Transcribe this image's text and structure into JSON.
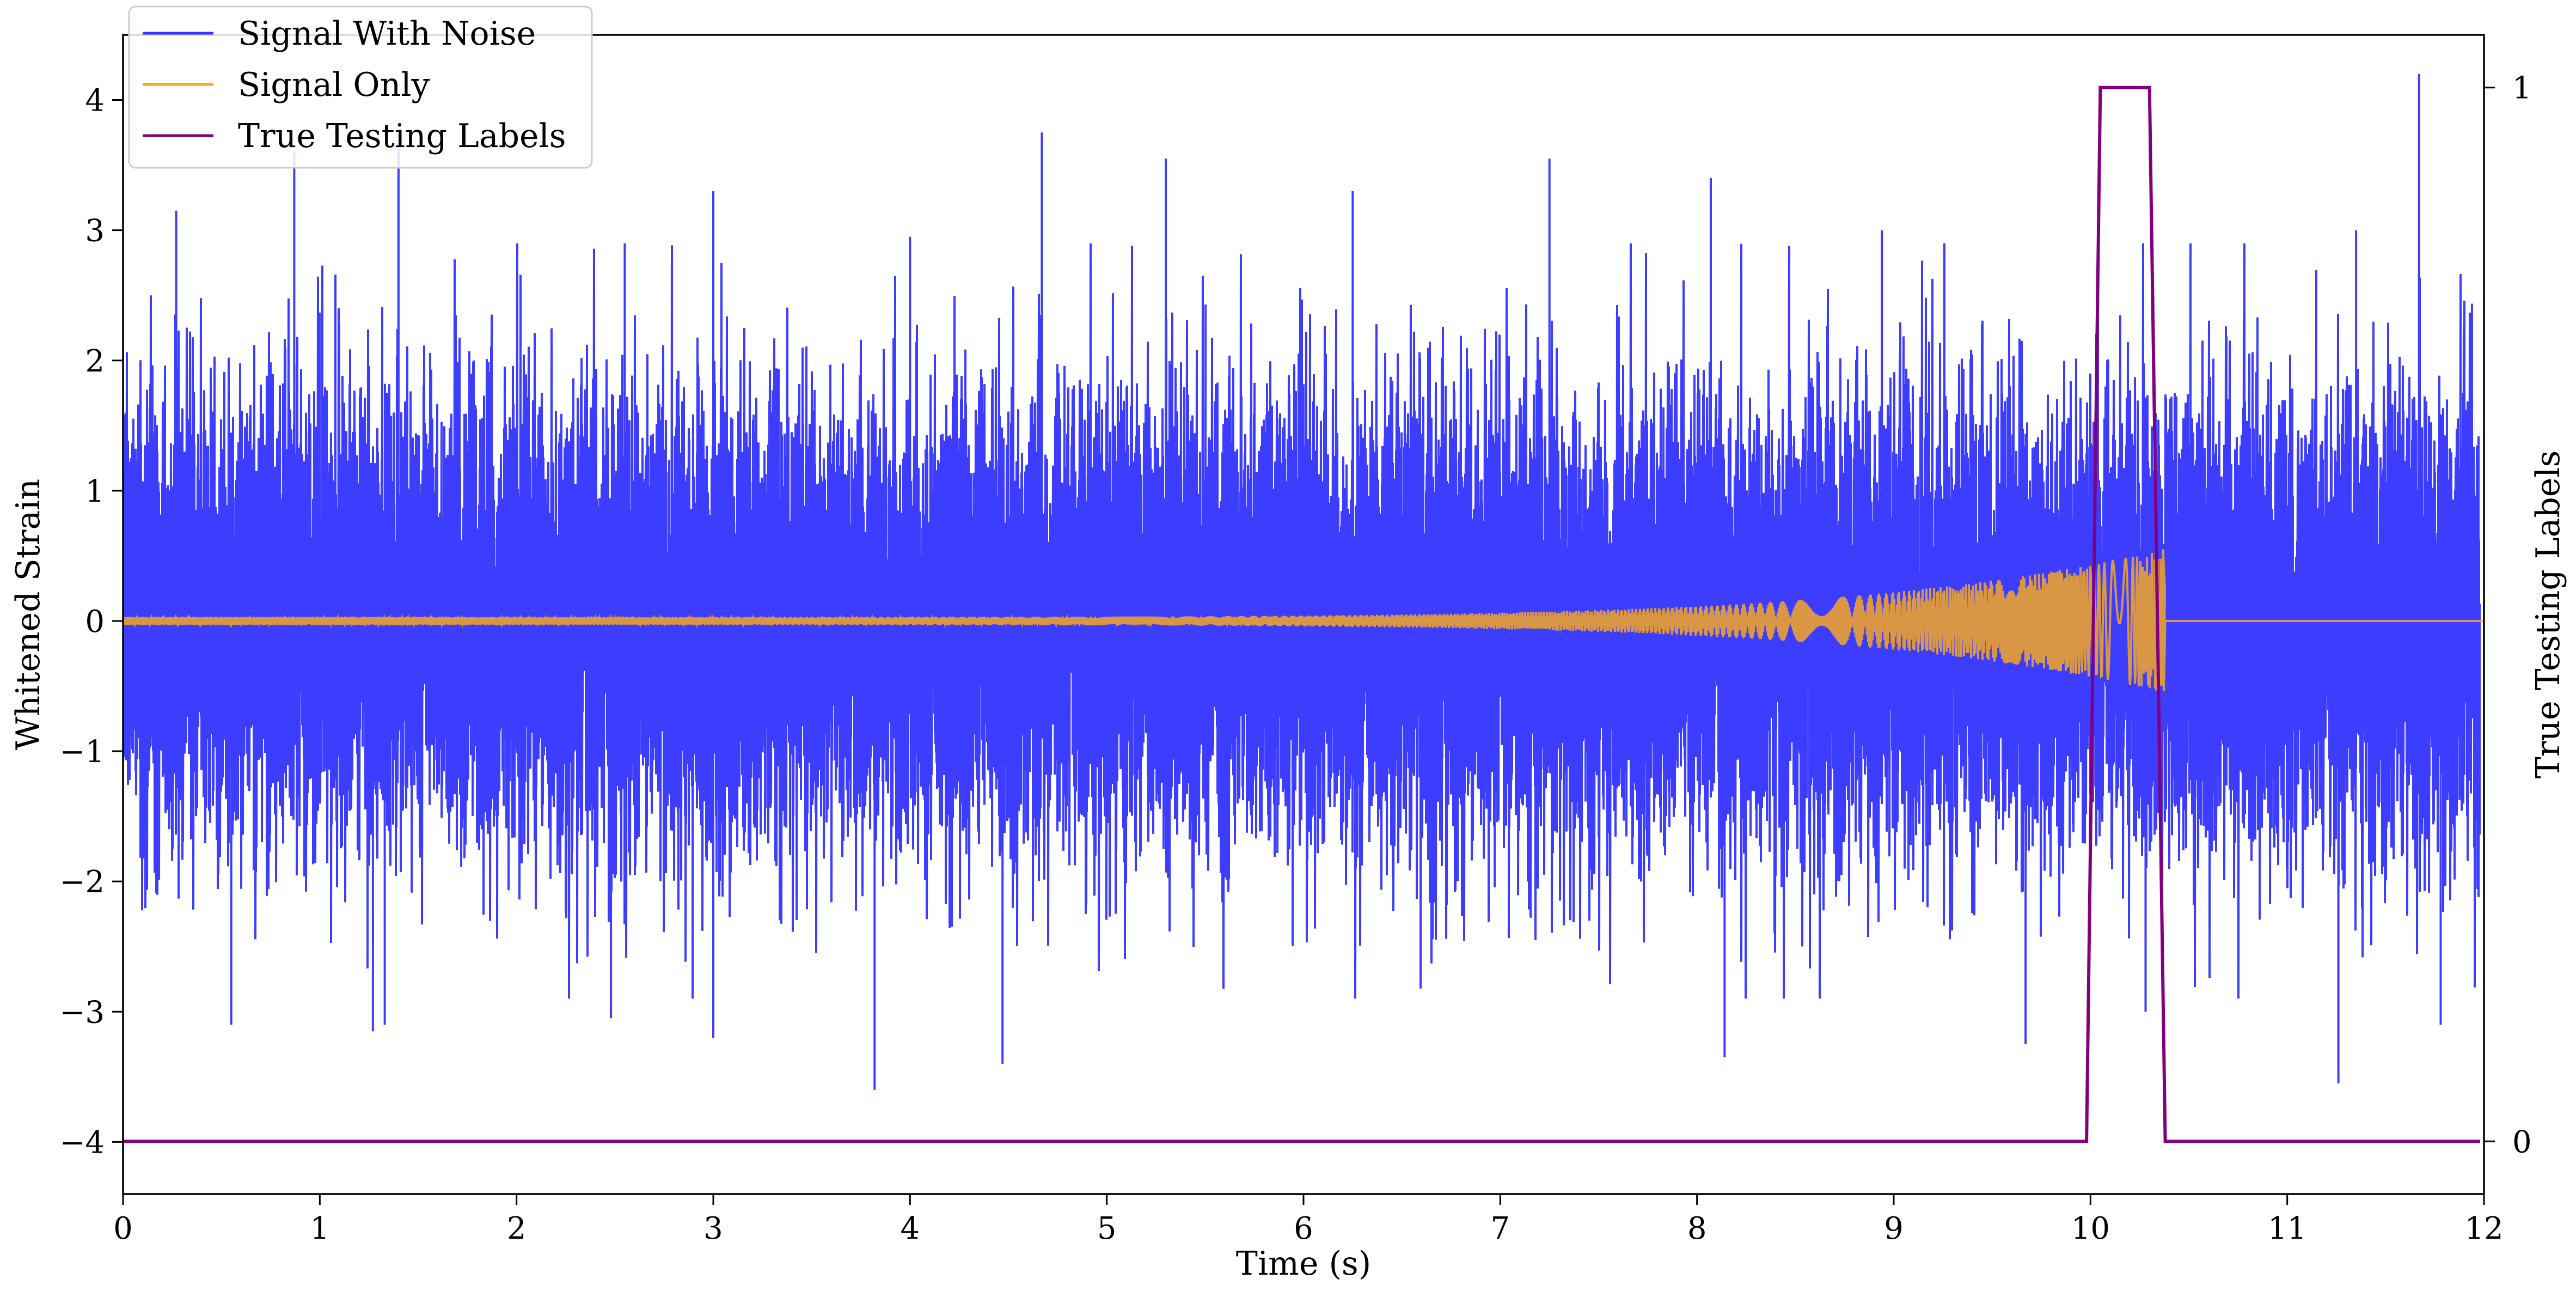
{
  "chart_data": {
    "type": "line",
    "xlabel": "Time (s)",
    "ylabel": "Whitened Strain",
    "y2label": "True Testing Labels",
    "xlim": [
      0,
      12
    ],
    "ylim": [
      -4.4,
      4.5
    ],
    "y2lim": [
      -0.05,
      1.05
    ],
    "x_ticks": [
      0,
      1,
      2,
      3,
      4,
      5,
      6,
      7,
      8,
      9,
      10,
      11,
      12
    ],
    "y_ticks": [
      -4,
      -3,
      -2,
      -1,
      0,
      1,
      2,
      3,
      4
    ],
    "y2_ticks": [
      0,
      1
    ],
    "grid": false,
    "legend": "top-left",
    "series": [
      {
        "name": "Signal With Noise",
        "color": "#3333ff",
        "axis": "left",
        "x_range": [
          0,
          11.98
        ],
        "std": 0.85,
        "peaks_positive": [
          [
            0.27,
            3.15
          ],
          [
            0.87,
            3.6
          ],
          [
            1.4,
            3.65
          ],
          [
            2.55,
            2.9
          ],
          [
            3.0,
            3.3
          ],
          [
            4.0,
            2.95
          ],
          [
            4.67,
            3.75
          ],
          [
            5.3,
            3.55
          ],
          [
            6.25,
            3.3
          ],
          [
            7.25,
            3.55
          ],
          [
            8.07,
            3.4
          ],
          [
            8.94,
            3.0
          ],
          [
            11.35,
            3.0
          ],
          [
            11.67,
            4.2
          ]
        ],
        "peaks_negative": [
          [
            0.55,
            -3.1
          ],
          [
            1.27,
            -3.15
          ],
          [
            1.33,
            -3.1
          ],
          [
            2.48,
            -3.05
          ],
          [
            3.0,
            -3.2
          ],
          [
            3.82,
            -3.6
          ],
          [
            4.47,
            -3.4
          ],
          [
            8.14,
            -3.35
          ],
          [
            9.67,
            -3.25
          ],
          [
            10.28,
            -3.0
          ],
          [
            11.26,
            -3.55
          ],
          [
            11.78,
            -3.1
          ]
        ]
      },
      {
        "name": "Signal Only",
        "color": "#f5a623",
        "axis": "left",
        "x_range": [
          0,
          12
        ],
        "amplitude_start": 0.03,
        "amplitude_peak": 0.55,
        "merger_time": 10.38
      },
      {
        "name": "True Testing Labels",
        "color": "#800080",
        "axis": "right",
        "x": [
          0,
          9.98,
          10.05,
          10.3,
          10.38,
          11.98
        ],
        "values": [
          0,
          0,
          1,
          1,
          0,
          0
        ]
      }
    ]
  }
}
